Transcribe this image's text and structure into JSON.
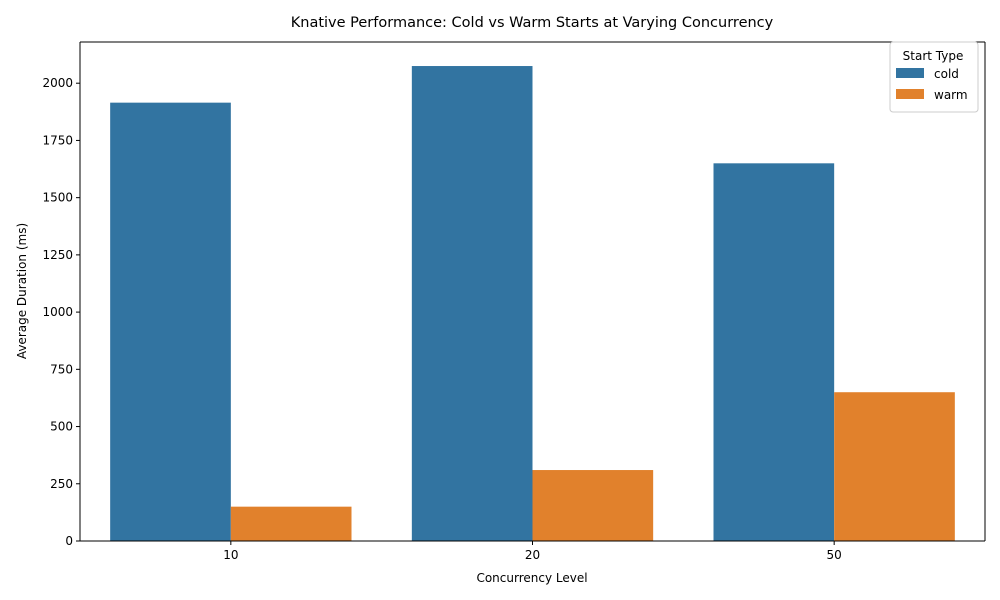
{
  "chart_data": {
    "type": "bar",
    "title": "Knative Performance: Cold vs Warm Starts at Varying Concurrency",
    "xlabel": "Concurrency Level",
    "ylabel": "Average Duration (ms)",
    "categories": [
      "10",
      "20",
      "50"
    ],
    "series": [
      {
        "name": "cold",
        "color": "#3274a1",
        "values": [
          1915,
          2075,
          1650
        ]
      },
      {
        "name": "warm",
        "color": "#e1812c",
        "values": [
          150,
          310,
          650
        ]
      }
    ],
    "ylim": [
      0,
      2180
    ],
    "yticks": [
      0,
      250,
      500,
      750,
      1000,
      1250,
      1500,
      1750,
      2000
    ],
    "grid": false,
    "legend": {
      "title": "Start Type",
      "placement": "top-right"
    }
  }
}
